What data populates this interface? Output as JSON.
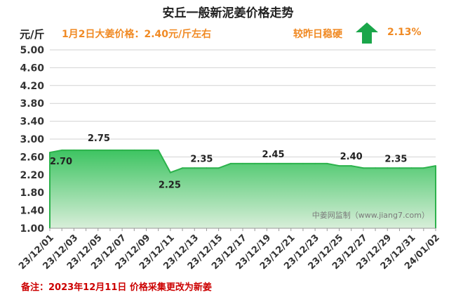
{
  "header": {
    "title": "安丘一般新泥姜价格走势",
    "unit": "元/斤",
    "price_note": "1月2日大姜价格：2.40元/斤左右",
    "change_label": "较昨日稳硬",
    "change_value": "2.13%",
    "change_icon": "up-arrow-icon"
  },
  "footnote": "备注：2023年12月11日 价格采集更改为新姜",
  "watermark": "中姜网监制（www.jiang7.com）",
  "colors": {
    "line": "#2cb24c",
    "fill_top": "#3ec462",
    "fill_bottom": "#d8eed9",
    "accent": "#f08a24",
    "arrow": "#1aa64a",
    "note": "#cc0000"
  },
  "chart_data": {
    "type": "area",
    "title": "安丘一般新泥姜价格走势",
    "ylabel": "元/斤",
    "ylim": [
      1.0,
      5.0
    ],
    "yticks": [
      "1.00",
      "1.40",
      "1.80",
      "2.20",
      "2.60",
      "3.00",
      "3.40",
      "3.80",
      "4.20",
      "4.60",
      "5.00"
    ],
    "grid": true,
    "x": [
      "23/12/01",
      "23/12/02",
      "23/12/03",
      "23/12/04",
      "23/12/05",
      "23/12/06",
      "23/12/07",
      "23/12/08",
      "23/12/09",
      "23/12/10",
      "23/12/11",
      "23/12/12",
      "23/12/13",
      "23/12/14",
      "23/12/15",
      "23/12/16",
      "23/12/17",
      "23/12/18",
      "23/12/19",
      "23/12/20",
      "23/12/21",
      "23/12/22",
      "23/12/23",
      "23/12/24",
      "23/12/25",
      "23/12/26",
      "23/12/27",
      "23/12/28",
      "23/12/29",
      "23/12/30",
      "23/12/31",
      "24/01/01",
      "24/01/02"
    ],
    "xtick_labels": [
      "23/12/01",
      "23/12/03",
      "23/12/05",
      "23/12/07",
      "23/12/09",
      "23/12/11",
      "23/12/13",
      "23/12/15",
      "23/12/17",
      "23/12/19",
      "23/12/21",
      "23/12/23",
      "23/12/25",
      "23/12/27",
      "23/12/29",
      "23/12/31",
      "24/01/02"
    ],
    "values": [
      2.7,
      2.75,
      2.75,
      2.75,
      2.75,
      2.75,
      2.75,
      2.75,
      2.75,
      2.75,
      2.25,
      2.35,
      2.35,
      2.35,
      2.35,
      2.45,
      2.45,
      2.45,
      2.45,
      2.45,
      2.45,
      2.45,
      2.45,
      2.45,
      2.4,
      2.4,
      2.35,
      2.35,
      2.35,
      2.35,
      2.35,
      2.35,
      2.4
    ],
    "data_labels": [
      {
        "index": 0,
        "text": "2.70"
      },
      {
        "index": 5,
        "text": "2.75"
      },
      {
        "index": 10,
        "text": "2.25"
      },
      {
        "index": 13,
        "text": "2.35"
      },
      {
        "index": 19,
        "text": "2.45"
      },
      {
        "index": 25,
        "text": "2.40"
      },
      {
        "index": 29,
        "text": "2.35"
      }
    ]
  }
}
